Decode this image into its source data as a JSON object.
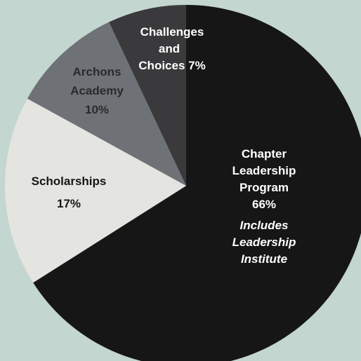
{
  "chart_data": {
    "type": "pie",
    "title": "",
    "start_angle_deg": 0,
    "direction": "clockwise",
    "slices": [
      {
        "name": "Chapter Leadership Program",
        "value": 66,
        "color": "#161616",
        "label_color": "#ffffff",
        "label_lines": [
          "Chapter",
          "Leadership",
          "Program",
          "66%"
        ],
        "note_lines": [
          "Includes",
          "Leadership",
          "Institute"
        ]
      },
      {
        "name": "Scholarships",
        "value": 17,
        "color": "#e4e4e1",
        "label_color": "#161616",
        "label_lines": [
          "Scholarships",
          "17%"
        ],
        "note_lines": []
      },
      {
        "name": "Archons Academy",
        "value": 10,
        "color": "#6e7276",
        "label_color": "#2a2a2a",
        "label_lines": [
          "Archons",
          "Academy",
          "10%"
        ],
        "note_lines": []
      },
      {
        "name": "Challenges and Choices",
        "value": 7,
        "color": "#3a3a3c",
        "label_color": "#ffffff",
        "label_lines": [
          "Challenges",
          "and",
          "Choices 7%"
        ],
        "note_lines": []
      }
    ]
  }
}
